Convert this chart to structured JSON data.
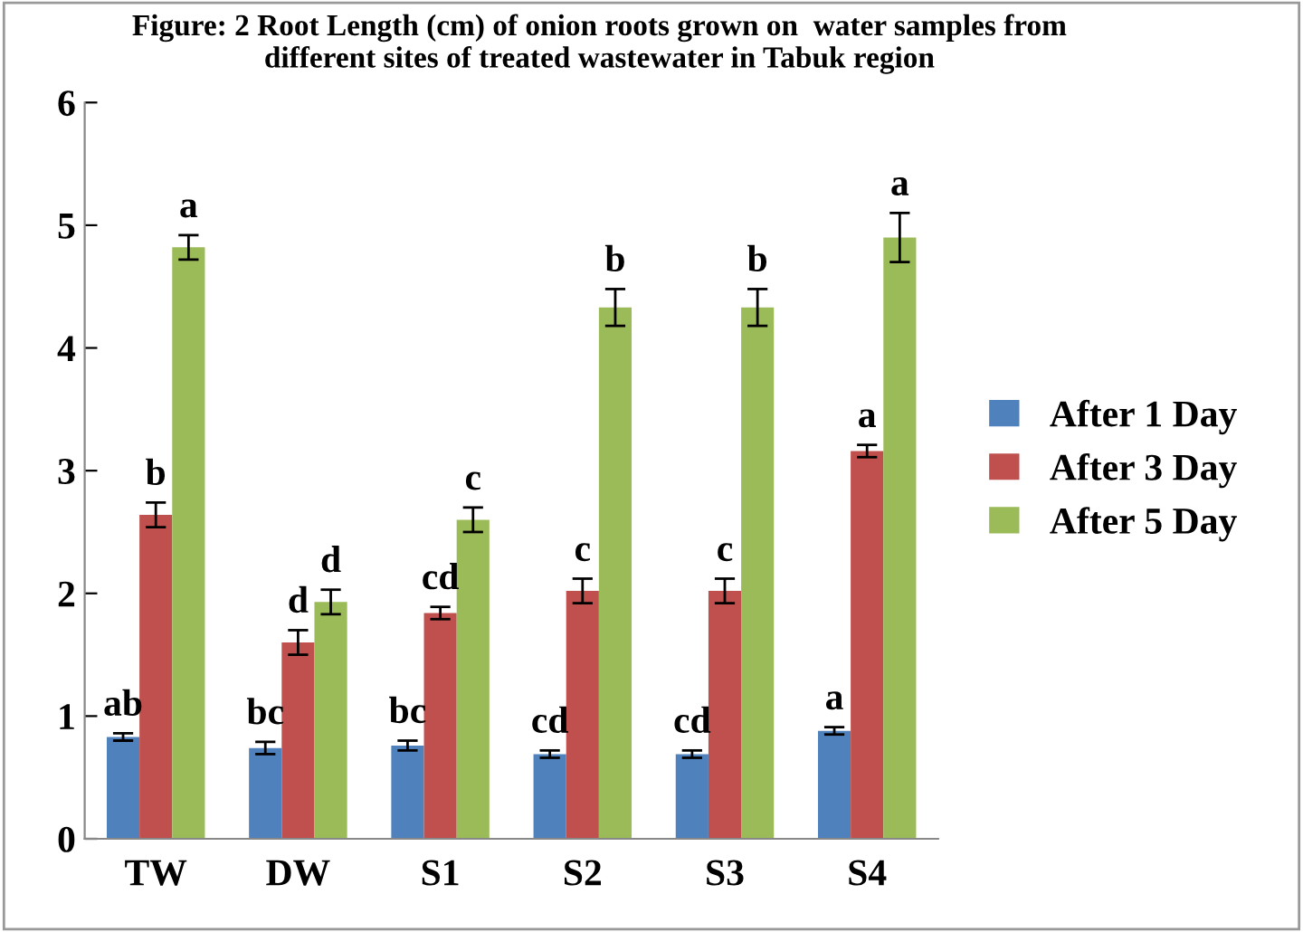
{
  "chart_data": {
    "type": "bar",
    "title": "Figure: 2 Root Length (cm) of onion roots grown on  water samples from different sites of treated wastewater in Tabuk region",
    "categories": [
      "TW",
      "DW",
      "S1",
      "S2",
      "S3",
      "S4"
    ],
    "series": [
      {
        "name": "After 1 Day",
        "color": "#4f81bd",
        "values": [
          0.83,
          0.74,
          0.76,
          0.69,
          0.69,
          0.88
        ],
        "errors": [
          0.03,
          0.05,
          0.04,
          0.03,
          0.03,
          0.03
        ],
        "value_labels": [
          "ab",
          "bc",
          "bc",
          "cd",
          "cd",
          "a"
        ]
      },
      {
        "name": "After 3 Day",
        "color": "#c0504d",
        "values": [
          2.64,
          1.6,
          1.84,
          2.02,
          2.02,
          3.16
        ],
        "errors": [
          0.1,
          0.1,
          0.05,
          0.1,
          0.1,
          0.05
        ],
        "value_labels": [
          "b",
          "d",
          "cd",
          "c",
          "c",
          "a"
        ]
      },
      {
        "name": "After 5 Day",
        "color": "#9bbb59",
        "values": [
          4.82,
          1.93,
          2.6,
          4.33,
          4.33,
          4.9
        ],
        "errors": [
          0.1,
          0.1,
          0.1,
          0.15,
          0.15,
          0.2
        ],
        "value_labels": [
          "a",
          "d",
          "c",
          "b",
          "b",
          "a"
        ]
      }
    ],
    "ylim": [
      0,
      6
    ],
    "yticks": [
      0,
      1,
      2,
      3,
      4,
      5,
      6
    ],
    "grid": false,
    "legend": "right"
  }
}
